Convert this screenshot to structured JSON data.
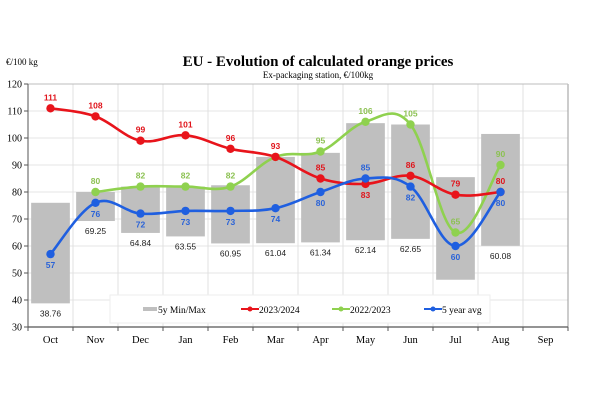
{
  "chart_data": {
    "type": "line",
    "title": "EU  -  Evolution of calculated orange prices",
    "subtitle": "Ex-packaging station, €/100kg",
    "ylabel": "€/100 kg",
    "xlabel": "",
    "ylim": [
      30,
      120
    ],
    "yticks": [
      30,
      40,
      50,
      60,
      70,
      80,
      90,
      100,
      110,
      120
    ],
    "grid": true,
    "legend_position": "bottom-inside",
    "categories": [
      "Oct",
      "Nov",
      "Dec",
      "Jan",
      "Feb",
      "Mar",
      "Apr",
      "May",
      "Jun",
      "Jul",
      "Aug",
      "Sep"
    ],
    "range_bars": {
      "name": "5y Min/Max",
      "color": "#bfbfbf",
      "max": [
        76,
        80,
        82,
        82,
        82.5,
        93,
        94.5,
        105.5,
        105,
        85.5,
        101.5,
        null
      ],
      "min": [
        38.76,
        69.25,
        64.84,
        63.55,
        60.95,
        61.04,
        61.34,
        62.14,
        62.65,
        47.5,
        60.08,
        null
      ],
      "min_labels": [
        "38.76",
        "69.25",
        "64.84",
        "63.55",
        "60.95",
        "61.04",
        "61.34",
        "62.14",
        "62.65",
        "",
        "60.08",
        ""
      ]
    },
    "series": [
      {
        "name": "2023/2024",
        "color": "#e8141b",
        "label_color": "#e0141b",
        "values": [
          111,
          108,
          99,
          101,
          96,
          93,
          85,
          83,
          86,
          79,
          80,
          null
        ],
        "label_pos": [
          "above",
          "above",
          "above",
          "above",
          "above",
          "above",
          "above",
          "below",
          "above",
          "above",
          "above",
          ""
        ]
      },
      {
        "name": "2022/2023",
        "color": "#8fd14f",
        "label_color": "#8cc152",
        "values": [
          null,
          80,
          82,
          82,
          82,
          93,
          95,
          106,
          105,
          65,
          90,
          null
        ],
        "label_pos": [
          "",
          "above",
          "above",
          "above",
          "above",
          "none",
          "above",
          "above",
          "above",
          "above",
          "above",
          ""
        ]
      },
      {
        "name": "5 year avg",
        "color": "#1f5fe0",
        "label_color": "#2a63d8",
        "values": [
          57,
          76,
          72,
          73,
          73,
          74,
          80,
          85,
          82,
          60,
          80,
          null
        ],
        "label_pos": [
          "below",
          "below",
          "below",
          "below",
          "below",
          "below",
          "below",
          "above",
          "below",
          "below",
          "below",
          ""
        ]
      }
    ]
  }
}
